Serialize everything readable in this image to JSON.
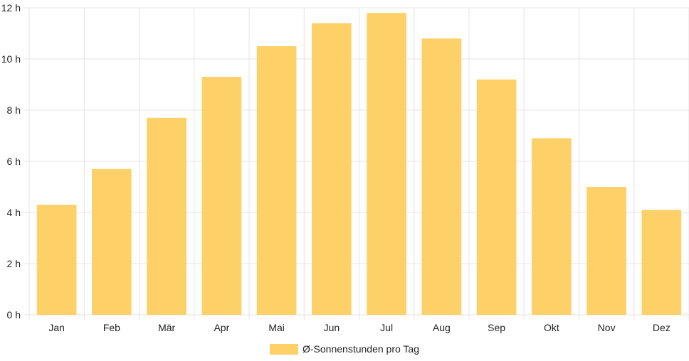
{
  "chart_data": {
    "type": "bar",
    "categories": [
      "Jan",
      "Feb",
      "Mär",
      "Apr",
      "Mai",
      "Jun",
      "Jul",
      "Aug",
      "Sep",
      "Okt",
      "Nov",
      "Dez"
    ],
    "series": [
      {
        "name": "Ø-Sonnenstunden pro Tag",
        "values": [
          4.3,
          5.7,
          7.7,
          9.3,
          10.5,
          11.4,
          11.8,
          10.8,
          9.2,
          6.9,
          5.0,
          4.1
        ]
      }
    ],
    "yticks": [
      "0 h",
      "2 h",
      "4 h",
      "6 h",
      "8 h",
      "10 h",
      "12 h"
    ],
    "ylim": [
      0,
      12
    ],
    "grid": true,
    "legend_position": "bottom",
    "bar_color": "#fdd068",
    "grid_color": "#e4e4e4"
  }
}
